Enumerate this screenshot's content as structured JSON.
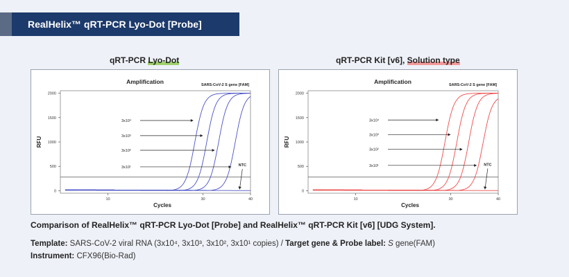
{
  "header": {
    "title": "RealHelix™ qRT-PCR Lyo-Dot [Probe]"
  },
  "charts": [
    {
      "heading_plain": "qRT-PCR ",
      "heading_highlight": "Lyo-Dot",
      "heading_suffix": ""
    },
    {
      "heading_plain": "qRT-PCR Kit [v6], ",
      "heading_highlight": "Solution type",
      "heading_suffix": ""
    }
  ],
  "caption": "Comparison of RealHelix™ qRT-PCR Lyo-Dot [Probe] and  RealHelix™ qRT-PCR Kit [v6] [UDG System].",
  "template_line": {
    "label": "Template:",
    "text": " SARS-CoV-2 viral RNA (3x10⁴, 3x10³, 3x10², 3x10¹ copies) / ",
    "label2": "Target gene & Probe label:",
    "italic": " S",
    "text2": " gene(FAM)"
  },
  "instrument_line": {
    "label": "Instrument:",
    "text": " CFX96(Bio-Rad)"
  },
  "chart_data": [
    {
      "type": "line",
      "title": "Amplification",
      "subtitle": "SARS-CoV-2 S gene [FAM]",
      "xlabel": "Cycles",
      "ylabel": "RFU",
      "xlim": [
        0,
        40
      ],
      "ylim": [
        -50,
        2050
      ],
      "xticks": [
        10,
        30,
        40
      ],
      "yticks": [
        0,
        500,
        1000,
        1500,
        2000
      ],
      "threshold": 280,
      "color": "#4a52c4",
      "series": [
        {
          "name": "3x10⁴",
          "ct": 26.5,
          "plateau": 2000
        },
        {
          "name": "3x10³",
          "ct": 29.0,
          "plateau": 2000
        },
        {
          "name": "3x10²",
          "ct": 31.5,
          "plateau": 2000
        },
        {
          "name": "3x10¹",
          "ct": 35.0,
          "plateau": 2000
        },
        {
          "name": "NTC",
          "ct": null,
          "plateau": 0
        }
      ],
      "annotations": [
        {
          "label": "3x10⁴",
          "y": 1440,
          "x_end": 28
        },
        {
          "label": "3x10³",
          "y": 1130,
          "x_end": 30
        },
        {
          "label": "3x10²",
          "y": 830,
          "x_end": 32.5
        },
        {
          "label": "3x10¹",
          "y": 490,
          "x_end": 36
        },
        {
          "label": "NTC",
          "y": 460,
          "x_end": 38
        }
      ]
    },
    {
      "type": "line",
      "title": "Amplification",
      "subtitle": "SARS-CoV-2 S gene [FAM]",
      "xlabel": "Cycles",
      "ylabel": "RFU",
      "xlim": [
        0,
        40
      ],
      "ylim": [
        -50,
        2050
      ],
      "xticks": [
        10,
        30,
        40
      ],
      "yticks": [
        0,
        500,
        1000,
        1500,
        2000
      ],
      "threshold": 280,
      "color": "#ee4b4b",
      "series": [
        {
          "name": "3x10⁴",
          "ct": 27.0,
          "plateau": 2000
        },
        {
          "name": "3x10³",
          "ct": 29.5,
          "plateau": 2000
        },
        {
          "name": "3x10²",
          "ct": 32.0,
          "plateau": 2000
        },
        {
          "name": "3x10¹",
          "ct": 35.0,
          "plateau": 1950
        },
        {
          "name": "NTC",
          "ct": null,
          "plateau": 0
        }
      ],
      "annotations": [
        {
          "label": "3x10⁴",
          "y": 1450,
          "x_end": 27.5
        },
        {
          "label": "3x10³",
          "y": 1150,
          "x_end": 30
        },
        {
          "label": "3x10²",
          "y": 850,
          "x_end": 32.5
        },
        {
          "label": "3x10¹",
          "y": 520,
          "x_end": 35.5
        },
        {
          "label": "NTC",
          "y": 470,
          "x_end": 37.5
        }
      ]
    }
  ]
}
